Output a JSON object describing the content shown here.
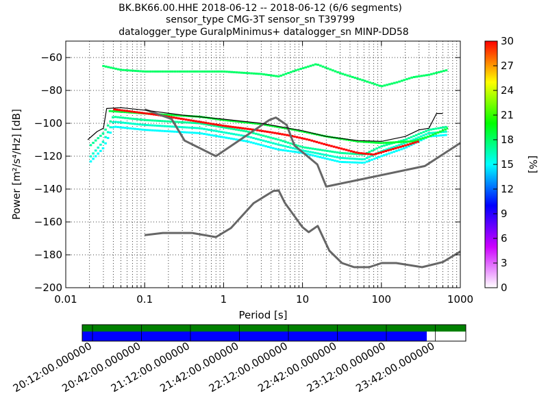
{
  "chart_data": {
    "type": "heatmap",
    "title_lines": [
      "BK.BK66.00.HHE   2018-06-12 -- 2018-06-12  (6/6 segments)",
      "sensor_type CMG-3T sensor_sn T39799",
      "datalogger_type GuralpMinimus+ datalogger_sn MINP-DD58"
    ],
    "xlabel": "Period [s]",
    "ylabel": "Power [m²/s⁴/Hz] [dB]",
    "x_scale": "log",
    "xlim": [
      0.01,
      1000
    ],
    "ylim": [
      -200,
      -50
    ],
    "x_tick_labels": [
      "0.01",
      "0.1",
      "1",
      "10",
      "100",
      "1000"
    ],
    "x_tick_values": [
      0.01,
      0.1,
      1,
      10,
      100,
      1000
    ],
    "y_tick_labels": [
      "−200",
      "−180",
      "−160",
      "−140",
      "−120",
      "−100",
      "−80",
      "−60"
    ],
    "y_tick_values": [
      -200,
      -180,
      -160,
      -140,
      -120,
      -100,
      -80,
      -60
    ],
    "grid": true,
    "colorbar": {
      "label": "[%]",
      "range": [
        0,
        30
      ],
      "tick_labels": [
        "0",
        "3",
        "6",
        "9",
        "12",
        "15",
        "18",
        "21",
        "24",
        "27",
        "30"
      ],
      "tick_values": [
        0,
        3,
        6,
        9,
        12,
        15,
        18,
        21,
        24,
        27,
        30
      ],
      "colors": [
        "#ffffff",
        "#cc00ff",
        "#0000ff",
        "#00ffff",
        "#00ff00",
        "#ffff00",
        "#ff0000"
      ]
    },
    "series": [
      {
        "role": "new-high-noise-model",
        "color": "#666666",
        "points": [
          [
            0.1,
            -91.5
          ],
          [
            0.22,
            -97.4
          ],
          [
            0.32,
            -110.5
          ],
          [
            0.8,
            -120
          ],
          [
            3.8,
            -98
          ],
          [
            4.6,
            -96.5
          ],
          [
            6.3,
            -101
          ],
          [
            7.9,
            -113.5
          ],
          [
            15.4,
            -125
          ],
          [
            20,
            -138.5
          ],
          [
            354.8,
            -126
          ],
          [
            1000,
            -112
          ]
        ]
      },
      {
        "role": "new-low-noise-model",
        "color": "#666666",
        "points": [
          [
            0.1,
            -168
          ],
          [
            0.17,
            -166.7
          ],
          [
            0.4,
            -166.7
          ],
          [
            0.8,
            -169.2
          ],
          [
            1.24,
            -163.7
          ],
          [
            2.4,
            -148.6
          ],
          [
            4.3,
            -141.1
          ],
          [
            5.0,
            -140.9
          ],
          [
            6.0,
            -148.5
          ],
          [
            10.0,
            -163.2
          ],
          [
            12.0,
            -166.2
          ],
          [
            15.6,
            -162.4
          ],
          [
            21.9,
            -177.5
          ],
          [
            31.6,
            -185
          ],
          [
            45,
            -187.5
          ],
          [
            70,
            -187.5
          ],
          [
            101,
            -185
          ],
          [
            154,
            -185
          ],
          [
            328,
            -187.5
          ],
          [
            600,
            -184.4
          ],
          [
            1000,
            -178
          ]
        ]
      },
      {
        "role": "data-envelope",
        "color": "#000000",
        "points": [
          [
            0.019,
            -110
          ],
          [
            0.025,
            -105
          ],
          [
            0.03,
            -103
          ],
          [
            0.033,
            -91
          ],
          [
            0.05,
            -90.5
          ],
          [
            0.1,
            -92
          ],
          [
            0.3,
            -95
          ],
          [
            1,
            -97.5
          ],
          [
            3,
            -100
          ],
          [
            10,
            -104.5
          ],
          [
            20,
            -108
          ],
          [
            50,
            -110.5
          ],
          [
            100,
            -111
          ],
          [
            200,
            -108
          ],
          [
            300,
            -104
          ],
          [
            400,
            -103
          ],
          [
            500,
            -94
          ],
          [
            600,
            -94
          ]
        ]
      }
    ],
    "density_traces": [
      {
        "level": 18,
        "points": [
          [
            0.029,
            -65
          ],
          [
            0.05,
            -67.5
          ],
          [
            0.1,
            -68.5
          ],
          [
            1,
            -68.5
          ],
          [
            3,
            -70
          ],
          [
            5,
            -71.5
          ],
          [
            8,
            -68
          ],
          [
            15,
            -64
          ],
          [
            30,
            -69.5
          ],
          [
            60,
            -74
          ],
          [
            100,
            -77.5
          ],
          [
            160,
            -75
          ],
          [
            250,
            -72
          ],
          [
            400,
            -70.5
          ],
          [
            700,
            -67.5
          ]
        ]
      },
      {
        "level": 17,
        "points": [
          [
            0.02,
            -114
          ],
          [
            0.03,
            -106
          ],
          [
            0.04,
            -96
          ],
          [
            0.1,
            -98
          ],
          [
            0.5,
            -100
          ],
          [
            2,
            -105
          ],
          [
            5,
            -110
          ],
          [
            10,
            -114.5
          ],
          [
            30,
            -118
          ],
          [
            60,
            -119
          ],
          [
            100,
            -114
          ],
          [
            200,
            -110
          ],
          [
            400,
            -104
          ],
          [
            700,
            -102
          ]
        ]
      },
      {
        "level": 16,
        "points": [
          [
            0.02,
            -121
          ],
          [
            0.03,
            -111
          ],
          [
            0.04,
            -99
          ],
          [
            0.1,
            -101
          ],
          [
            0.5,
            -103
          ],
          [
            2,
            -108
          ],
          [
            5,
            -113
          ],
          [
            10,
            -116.5
          ],
          [
            30,
            -121
          ],
          [
            60,
            -122
          ],
          [
            100,
            -117
          ],
          [
            200,
            -112
          ],
          [
            400,
            -106
          ],
          [
            700,
            -105
          ]
        ]
      },
      {
        "level": 15,
        "points": [
          [
            0.02,
            -124
          ],
          [
            0.03,
            -115
          ],
          [
            0.04,
            -102
          ],
          [
            0.1,
            -104
          ],
          [
            0.5,
            -106
          ],
          [
            2,
            -111
          ],
          [
            5,
            -116
          ],
          [
            10,
            -118
          ],
          [
            30,
            -123.5
          ],
          [
            60,
            -124
          ],
          [
            100,
            -120
          ],
          [
            200,
            -115
          ],
          [
            400,
            -108
          ],
          [
            700,
            -107
          ]
        ]
      },
      {
        "level": 19,
        "points": [
          [
            0.035,
            -92.5
          ],
          [
            0.1,
            -94
          ],
          [
            0.5,
            -96
          ],
          [
            1,
            -98
          ],
          [
            3,
            -100.5
          ],
          [
            8,
            -104
          ],
          [
            20,
            -108
          ],
          [
            50,
            -111
          ],
          [
            100,
            -112
          ],
          [
            250,
            -111
          ],
          [
            400,
            -108
          ],
          [
            700,
            -103
          ]
        ]
      },
      {
        "level": 30,
        "points": [
          [
            0.04,
            -91.5
          ],
          [
            0.06,
            -92.5
          ],
          [
            0.15,
            -95
          ],
          [
            1,
            -101.5
          ],
          [
            2.5,
            -104
          ],
          [
            4,
            -105.5
          ],
          [
            7,
            -107.5
          ],
          [
            12,
            -110
          ],
          [
            20,
            -113
          ],
          [
            50,
            -118
          ],
          [
            80,
            -119
          ],
          [
            200,
            -113.5
          ],
          [
            300,
            -111
          ]
        ]
      }
    ]
  },
  "segment_bar": {
    "colors": {
      "full_coverage": "#008000",
      "data_segments": "#0000ff",
      "gap": "#ffffff"
    },
    "time_tick_labels": [
      "20:12:00.000000",
      "20:42:00.000000",
      "21:12:00.000000",
      "21:42:00.000000",
      "22:12:00.000000",
      "22:42:00.000000",
      "23:12:00.000000",
      "23:42:00.000000"
    ]
  }
}
